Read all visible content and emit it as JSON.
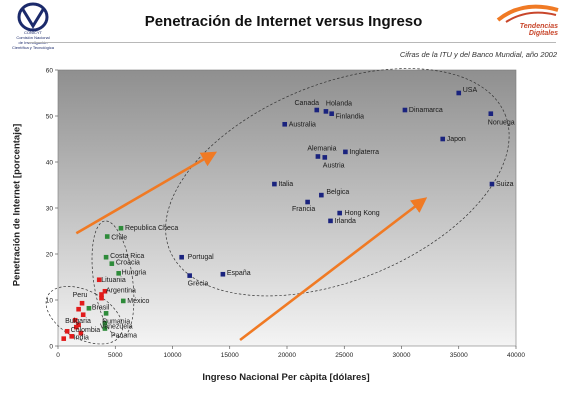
{
  "header": {
    "title": "Penetración de Internet versus Ingreso",
    "source_note": "Cifras de la ITU y del Banco Mundial, año 2002",
    "left_logo_text": [
      "CONICYT",
      "Comisión Nacional",
      "de Investigación",
      "Científica y Tecnológica"
    ],
    "right_logo_text": [
      "Tendencias",
      "Digitales"
    ]
  },
  "colors": {
    "plot_bg_top": "#8f8f8f",
    "plot_bg_bottom": "#f4f4f4",
    "high_income": "#1a237e",
    "mid_income": "#2e8b3a",
    "low_income": "#e11b1b",
    "arrow": "#f07a24"
  },
  "chart_data": {
    "type": "scatter",
    "title": "Penetración de Internet versus Ingreso",
    "xlabel": "Ingreso Nacional Per càpita [dólares]",
    "ylabel": "Penetración de Internet [porcentaje]",
    "xlim": [
      0,
      40000
    ],
    "ylim": [
      0,
      60
    ],
    "xticks": [
      0,
      5000,
      10000,
      15000,
      20000,
      25000,
      30000,
      35000,
      40000
    ],
    "yticks": [
      0,
      10,
      20,
      30,
      40,
      50,
      60
    ],
    "grid": false,
    "series": [
      {
        "group": "high",
        "points": [
          {
            "label": "USA",
            "x": 35000,
            "y": 55
          },
          {
            "label": "Canada",
            "x": 22600,
            "y": 51.3
          },
          {
            "label": "Holanda",
            "x": 23400,
            "y": 51
          },
          {
            "label": "Finlandia",
            "x": 23900,
            "y": 50.5
          },
          {
            "label": "Dinamarca",
            "x": 30300,
            "y": 51.3
          },
          {
            "label": "Noruega",
            "x": 37800,
            "y": 50.5
          },
          {
            "label": "Australia",
            "x": 19800,
            "y": 48.2
          },
          {
            "label": "Japon",
            "x": 33600,
            "y": 45
          },
          {
            "label": "Alemania",
            "x": 22700,
            "y": 41.2
          },
          {
            "label": "Inglaterra",
            "x": 25100,
            "y": 42.2
          },
          {
            "label": "Austria",
            "x": 23300,
            "y": 41
          },
          {
            "label": "Italia",
            "x": 18900,
            "y": 35.2
          },
          {
            "label": "Suiza",
            "x": 37900,
            "y": 35.2
          },
          {
            "label": "Belgica",
            "x": 23000,
            "y": 32.8
          },
          {
            "label": "Francia",
            "x": 21800,
            "y": 31.3
          },
          {
            "label": "Hong Kong",
            "x": 24600,
            "y": 28.9
          },
          {
            "label": "Irlanda",
            "x": 23800,
            "y": 27.2
          },
          {
            "label": "Portugal",
            "x": 10800,
            "y": 19.3
          },
          {
            "label": "Grecia",
            "x": 11500,
            "y": 15.3
          },
          {
            "label": "España",
            "x": 14400,
            "y": 15.6
          }
        ]
      },
      {
        "group": "mid",
        "points": [
          {
            "label": "Republica Checa",
            "x": 5500,
            "y": 25.6
          },
          {
            "label": "Chile",
            "x": 4300,
            "y": 23.8
          },
          {
            "label": "Costa Rica",
            "x": 4200,
            "y": 19.3
          },
          {
            "label": "Croacia",
            "x": 4700,
            "y": 17.9
          },
          {
            "label": "Hungria",
            "x": 5300,
            "y": 15.8
          },
          {
            "label": "México",
            "x": 5700,
            "y": 9.8
          },
          {
            "label": "Rumania",
            "x": 4200,
            "y": 7.1
          },
          {
            "label": "Venezuela",
            "x": 4100,
            "y": 4.9
          },
          {
            "label": "Panama",
            "x": 4100,
            "y": 3.8
          },
          {
            "label": "Brasil",
            "x": 2700,
            "y": 8.2
          }
        ]
      },
      {
        "group": "low",
        "points": [
          {
            "label": "Lituania",
            "x": 3600,
            "y": 14.4
          },
          {
            "label": "Argentina",
            "x": 4100,
            "y": 11.9
          },
          {
            "label": "Peru",
            "x": 2100,
            "y": 9.3
          },
          {
            "label": "Bulgaria",
            "x": 1500,
            "y": 5.6
          },
          {
            "label": "Colombia",
            "x": 1800,
            "y": 4.6
          },
          {
            "label": "India",
            "x": 500,
            "y": 1.6
          }
        ],
        "unlabeled_points": [
          {
            "x": 800,
            "y": 3.2
          },
          {
            "x": 1200,
            "y": 2.1
          },
          {
            "x": 1600,
            "y": 4.1
          },
          {
            "x": 2000,
            "y": 2.8
          },
          {
            "x": 2200,
            "y": 6.8
          },
          {
            "x": 3800,
            "y": 10.4
          },
          {
            "x": 3800,
            "y": 11.2
          },
          {
            "x": 1800,
            "y": 8.0
          }
        ]
      }
    ],
    "annotations": [
      "dashed ellipse around low-income group",
      "dashed ellipse around middle-income group",
      "dashed ellipse around high-income group",
      "two orange arrows pointing up-right"
    ]
  }
}
